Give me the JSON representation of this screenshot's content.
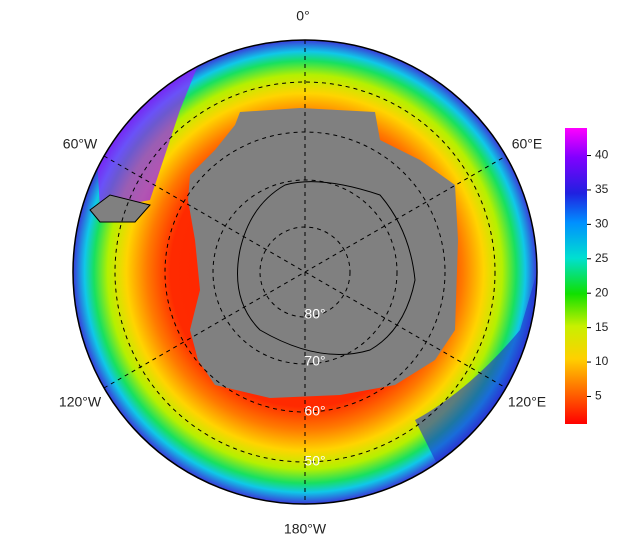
{
  "map": {
    "longitude_labels": [
      "0°",
      "60°E",
      "120°E",
      "180°W",
      "120°W",
      "60°W"
    ],
    "latitude_labels": [
      "80°",
      "70°",
      "60°",
      "50°"
    ],
    "colorbar": {
      "range": [
        1,
        44
      ],
      "ticks": [
        5,
        10,
        15,
        20,
        25,
        30,
        35,
        40
      ]
    }
  }
}
